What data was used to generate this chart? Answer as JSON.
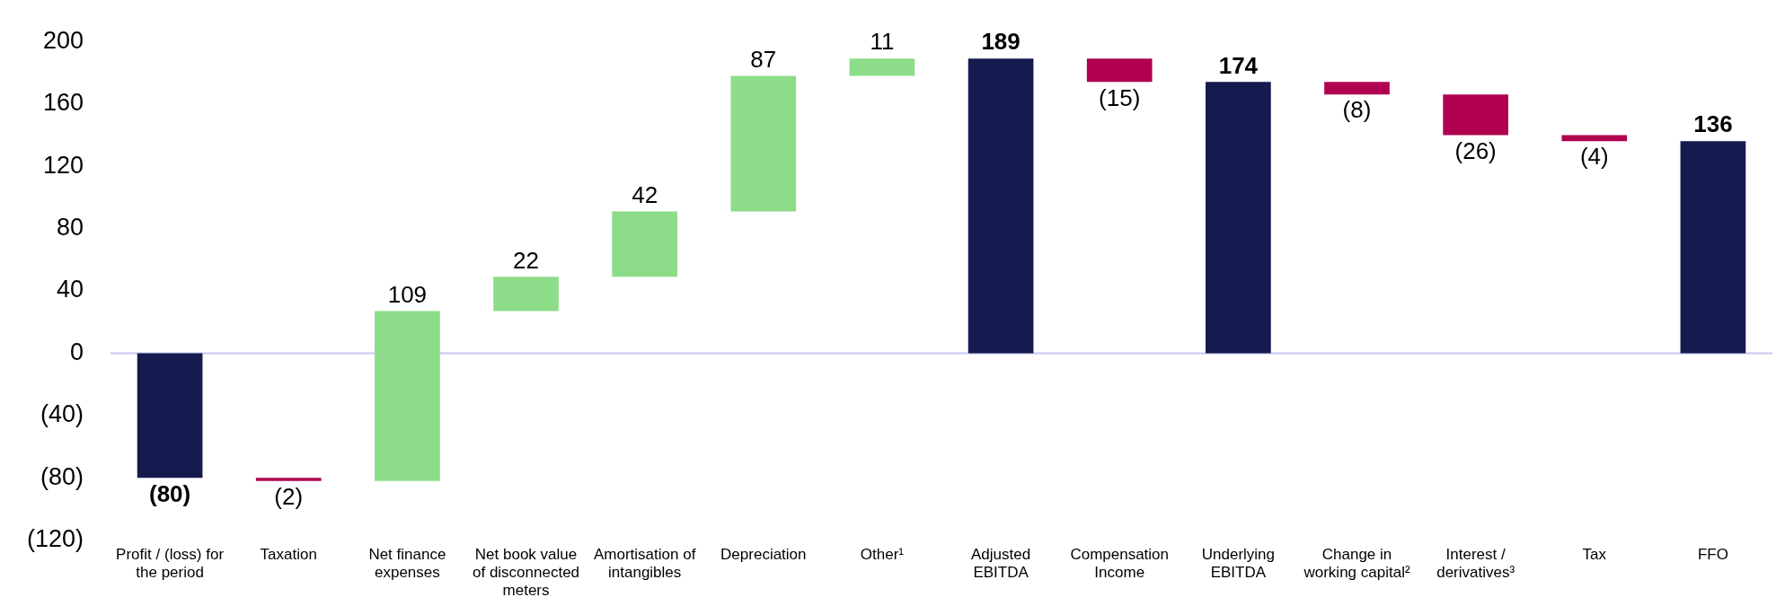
{
  "chart_data": {
    "type": "bar",
    "categories": [
      "Profit / (loss) for the period",
      "Taxation",
      "Net finance expenses",
      "Net book value of disconnected meters",
      "Amortisation of intangibles",
      "Depreciation",
      "Other¹",
      "Adjusted EBITDA",
      "Compensation Income",
      "Underlying EBITDA",
      "Change in working capital²",
      "Interest / derivatives³",
      "Tax",
      "FFO"
    ],
    "values": [
      -80,
      -2,
      109,
      22,
      42,
      87,
      11,
      189,
      -15,
      174,
      -8,
      -26,
      -4,
      136
    ],
    "base": [
      0,
      -80,
      -82,
      27,
      49,
      91,
      178,
      0,
      189,
      0,
      174,
      166,
      140,
      0
    ],
    "colors": [
      "#151a4f",
      "#b0004f",
      "#8ddc8a",
      "#8ddc8a",
      "#8ddc8a",
      "#8ddc8a",
      "#8ddc8a",
      "#151a4f",
      "#b0004f",
      "#151a4f",
      "#b0004f",
      "#b0004f",
      "#b0004f",
      "#151a4f"
    ],
    "value_labels": [
      "(80)",
      "(2)",
      "109",
      "22",
      "42",
      "87",
      "11",
      "189",
      "(15)",
      "174",
      "(8)",
      "(26)",
      "(4)",
      "136"
    ],
    "ylim": [
      -120,
      200
    ],
    "yticks": [
      {
        "value": -120,
        "label": "(120)"
      },
      {
        "value": -80,
        "label": "(80)"
      },
      {
        "value": -40,
        "label": "(40)"
      },
      0,
      40,
      80,
      120,
      160,
      200
    ],
    "ref_lines": [
      {
        "axis": "y",
        "value": 0,
        "color": "#c8c8f0"
      }
    ],
    "grid": false,
    "legend": false
  }
}
